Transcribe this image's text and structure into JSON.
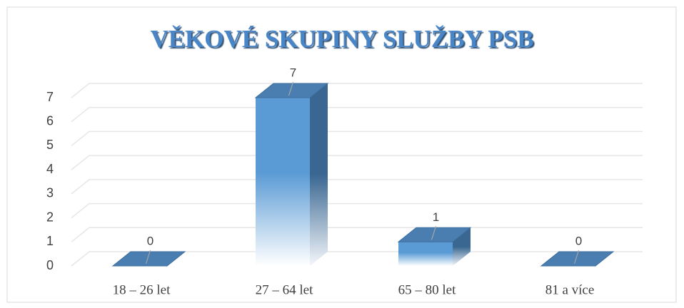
{
  "chart_data": {
    "type": "bar",
    "title": "VĚKOVÉ SKUPINY SLUŽBY PSB",
    "categories": [
      "18 – 26 let",
      "27 – 64 let",
      "65 – 80 let",
      "81 a více"
    ],
    "values": [
      0,
      7,
      1,
      0
    ],
    "color": "#5b9bd5",
    "ylim": [
      0,
      7
    ],
    "yticks": [
      0,
      1,
      2,
      3,
      4,
      5,
      6,
      7
    ],
    "grid": true
  }
}
